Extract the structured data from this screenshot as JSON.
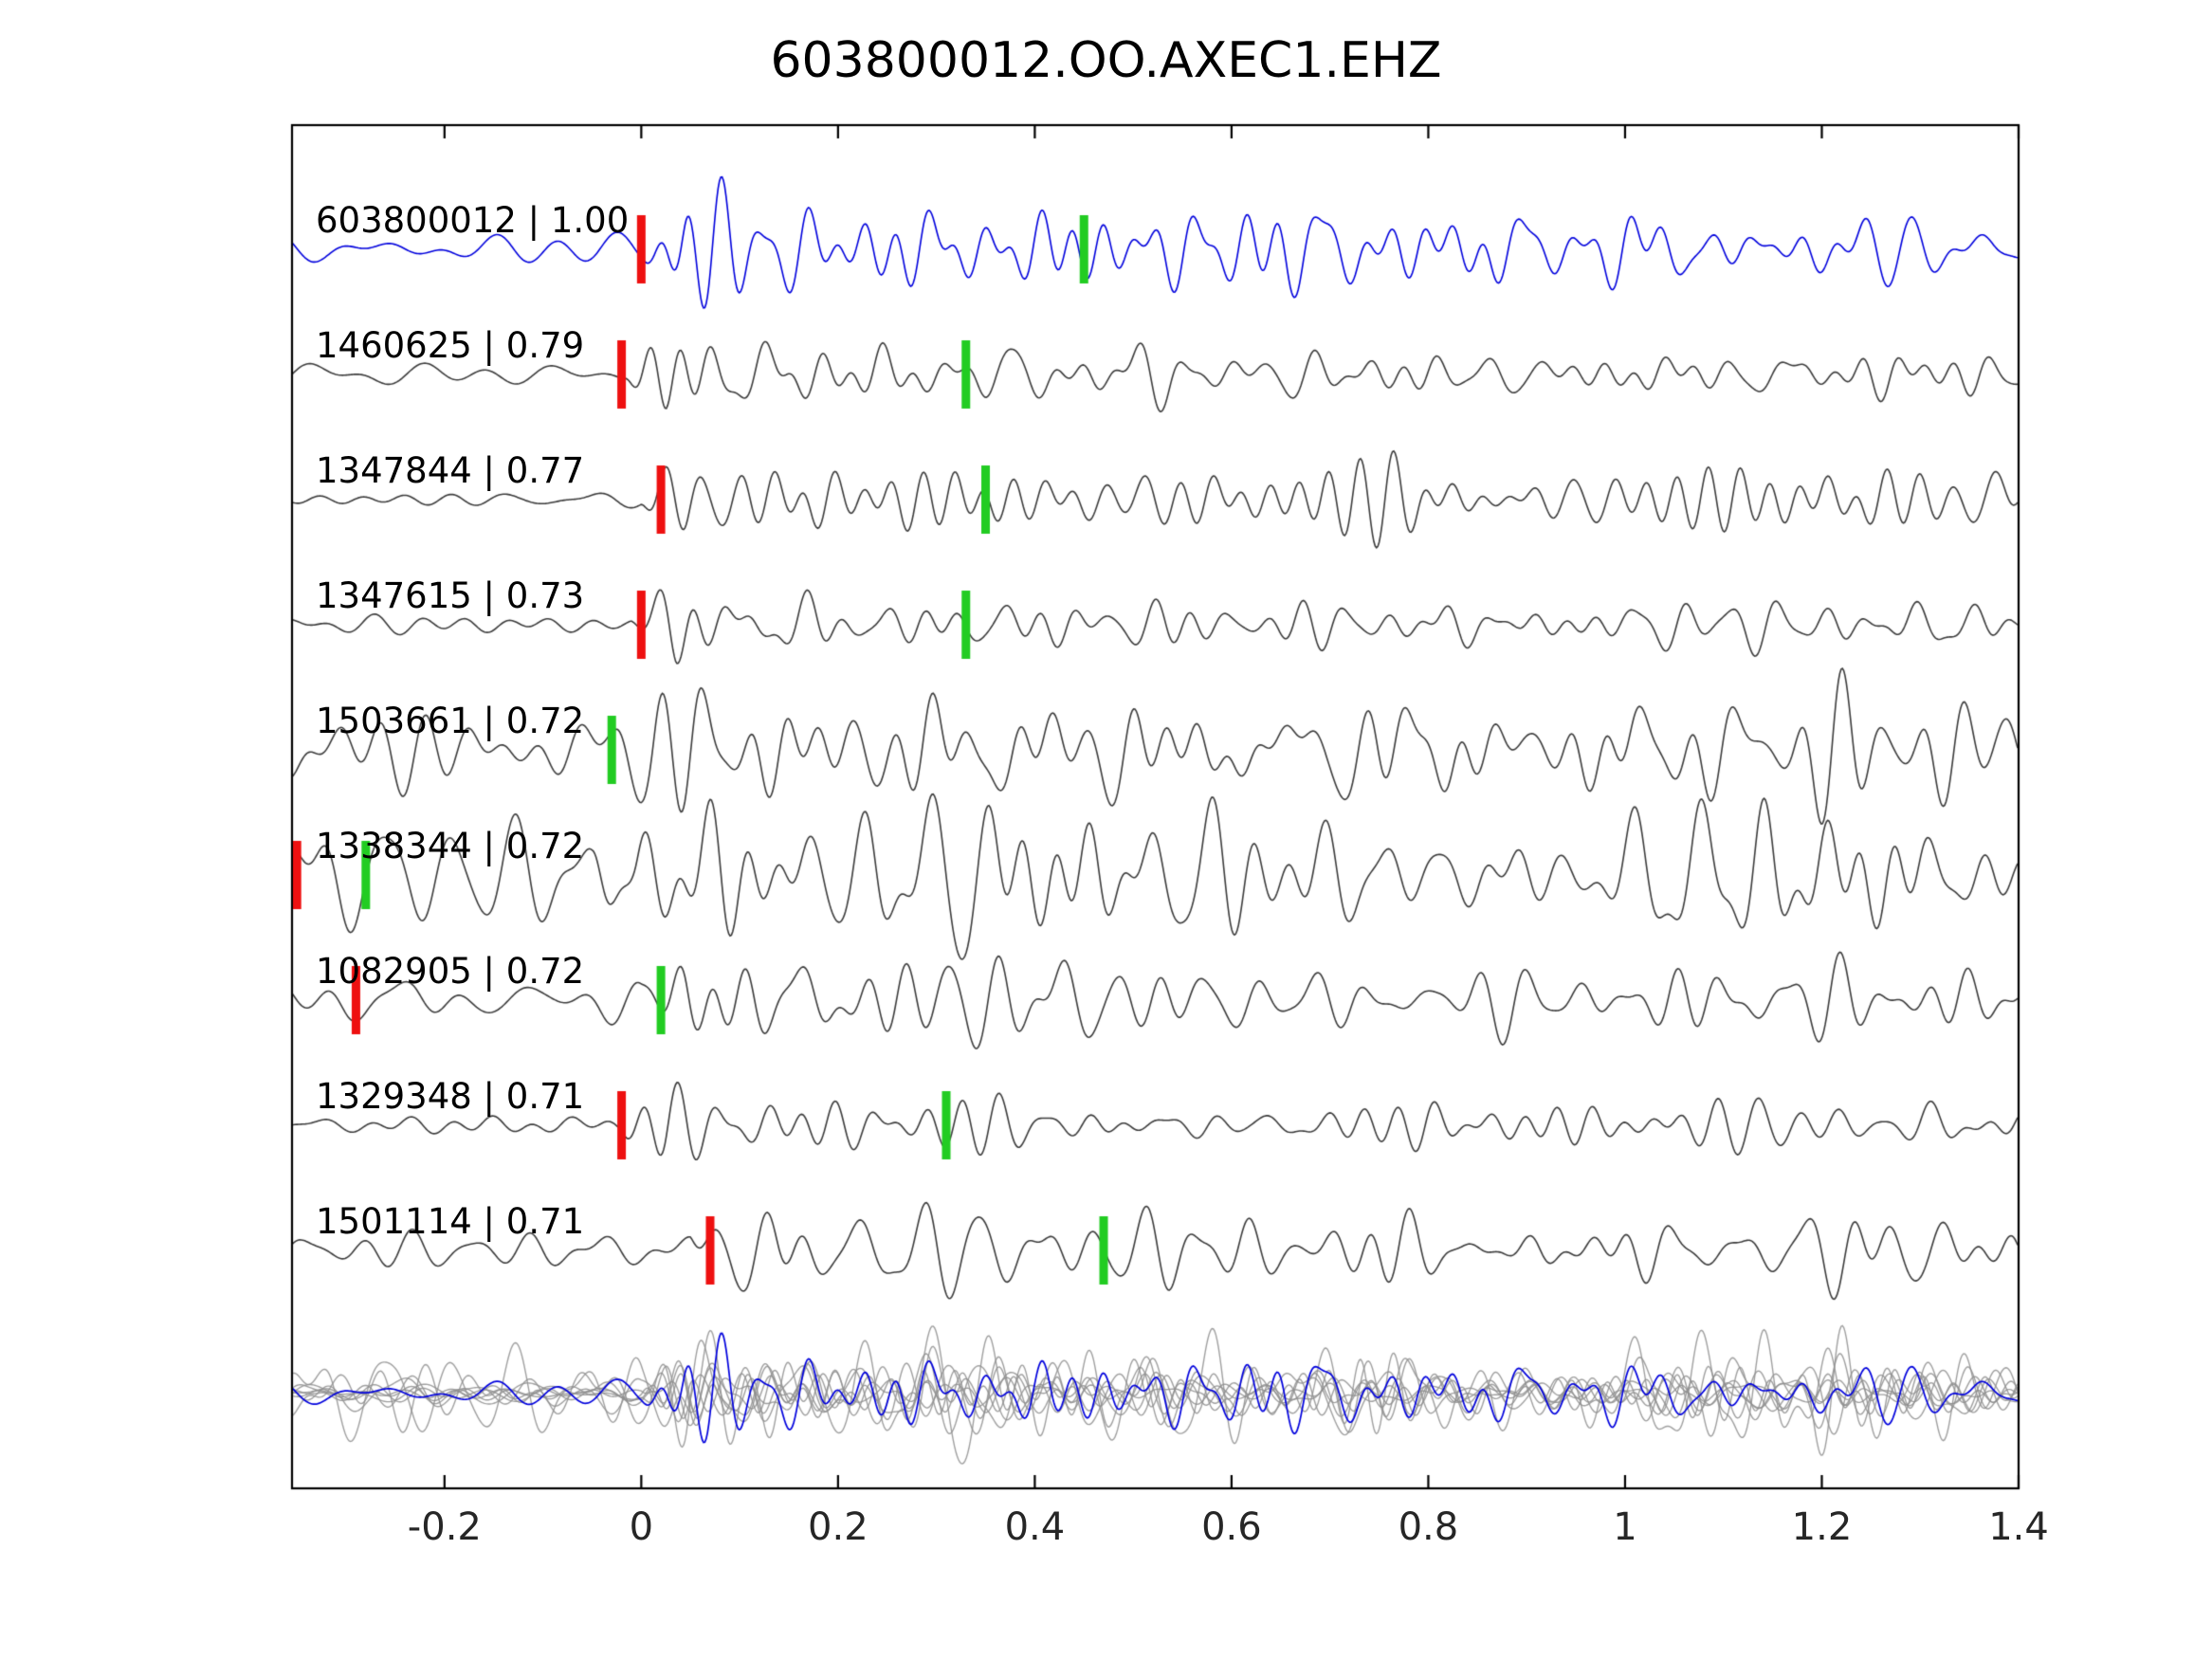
{
  "title": "603800012.OO.AXEC1.EHZ",
  "chart_data": {
    "type": "line",
    "kind": "seismogram-template-match",
    "xlim": [
      -0.355,
      1.4
    ],
    "xticks": [
      -0.2,
      0,
      0.2,
      0.4,
      0.6,
      0.8,
      1,
      1.2,
      1.4
    ],
    "xtick_labels": [
      "-0.2",
      "0",
      "0.2",
      "0.4",
      "0.6",
      "0.8",
      "1",
      "1.2",
      "1.4"
    ],
    "grid": false,
    "legend": "none",
    "colors": {
      "template_trace": "#0000dd",
      "member_trace": "#3c3c3c",
      "overlay_member": "#8f8f8f",
      "red_pick": "#ee1010",
      "green_pick": "#22cc22",
      "axis": "#000000"
    },
    "traces": [
      {
        "id": "603800012",
        "correlation": 1.0,
        "label": "603800012 | 1.00",
        "is_template": true,
        "red_pick": 0.0,
        "green_pick": 0.45,
        "onset": 0.0,
        "noise_amp": 0.25,
        "burst_amp": 1.0,
        "coda_amp": 0.45,
        "seed": 11
      },
      {
        "id": "1460625",
        "correlation": 0.79,
        "label": "1460625 | 0.79",
        "is_template": false,
        "red_pick": -0.02,
        "green_pick": 0.33,
        "onset": -0.02,
        "noise_amp": 0.12,
        "burst_amp": 1.0,
        "coda_amp": 0.32,
        "seed": 23
      },
      {
        "id": "1347844",
        "correlation": 0.77,
        "label": "1347844 | 0.77",
        "is_template": false,
        "red_pick": 0.02,
        "green_pick": 0.35,
        "onset": 0.0,
        "noise_amp": 0.15,
        "burst_amp": 1.0,
        "coda_amp": 0.4,
        "seed": 37
      },
      {
        "id": "1347615",
        "correlation": 0.73,
        "label": "1347615 | 0.73",
        "is_template": false,
        "red_pick": 0.0,
        "green_pick": 0.33,
        "onset": -0.01,
        "noise_amp": 0.15,
        "burst_amp": 0.9,
        "coda_amp": 0.35,
        "seed": 41
      },
      {
        "id": "1503661",
        "correlation": 0.72,
        "label": "1503661 | 0.72",
        "is_template": false,
        "red_pick": null,
        "green_pick": -0.03,
        "onset": -0.03,
        "noise_amp": 0.55,
        "burst_amp": 0.95,
        "coda_amp": 0.42,
        "seed": 53
      },
      {
        "id": "1338344",
        "correlation": 0.72,
        "label": "1338344 | 0.72",
        "is_template": false,
        "red_pick": -0.35,
        "green_pick": -0.28,
        "onset": -0.05,
        "noise_amp": 0.75,
        "burst_amp": 0.85,
        "coda_amp": 0.75,
        "seed": 67
      },
      {
        "id": "1082905",
        "correlation": 0.72,
        "label": "1082905 | 0.72",
        "is_template": false,
        "red_pick": -0.29,
        "green_pick": 0.02,
        "onset": 0.0,
        "noise_amp": 0.3,
        "burst_amp": 1.0,
        "coda_amp": 0.4,
        "seed": 79
      },
      {
        "id": "1329348",
        "correlation": 0.71,
        "label": "1329348 | 0.71",
        "is_template": false,
        "red_pick": -0.02,
        "green_pick": 0.31,
        "onset": -0.02,
        "noise_amp": 0.14,
        "burst_amp": 1.0,
        "coda_amp": 0.33,
        "seed": 89
      },
      {
        "id": "1501114",
        "correlation": 0.71,
        "label": "1501114 | 0.71",
        "is_template": false,
        "red_pick": 0.07,
        "green_pick": 0.47,
        "onset": 0.05,
        "noise_amp": 0.3,
        "burst_amp": 0.9,
        "coda_amp": 0.45,
        "seed": 97
      }
    ],
    "overlay": {
      "description": "all detection traces stacked in gray with the blue template superimposed",
      "aligned_onset": 0.0
    }
  }
}
